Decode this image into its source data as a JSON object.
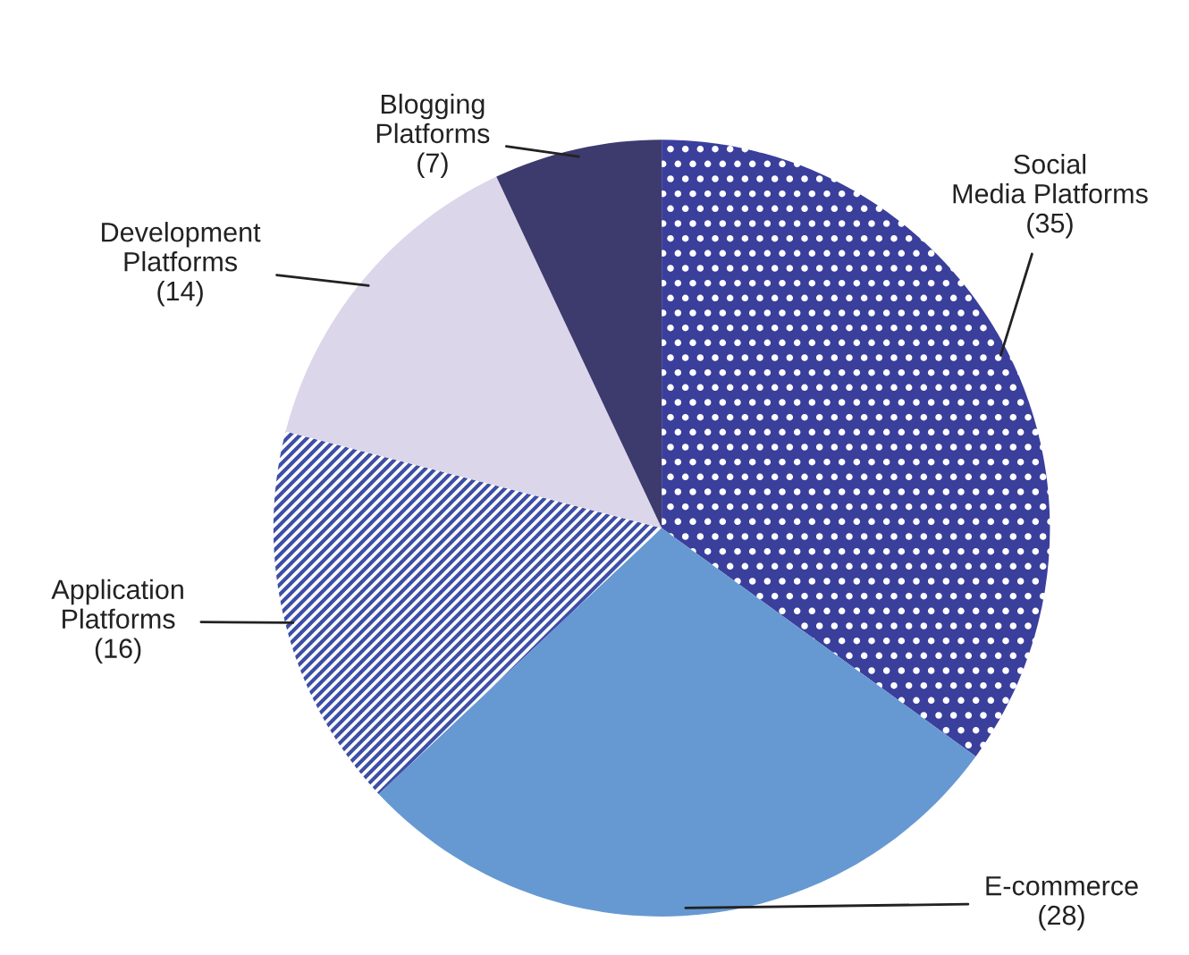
{
  "chart_data": {
    "type": "pie",
    "categories": [
      "Social Media Platforms",
      "E-commerce",
      "Application Platforms",
      "Development Platforms",
      "Blogging Platforms"
    ],
    "values": [
      35,
      28,
      16,
      14,
      7
    ],
    "value_labels": [
      "(35)",
      "(28)",
      "(16)",
      "(14)",
      "(7)"
    ],
    "colors": [
      "#3a3f9c",
      "#6699d1",
      "#3d4ea6",
      "#dcd6ea",
      "#3d3a6e"
    ],
    "legend": false
  }
}
